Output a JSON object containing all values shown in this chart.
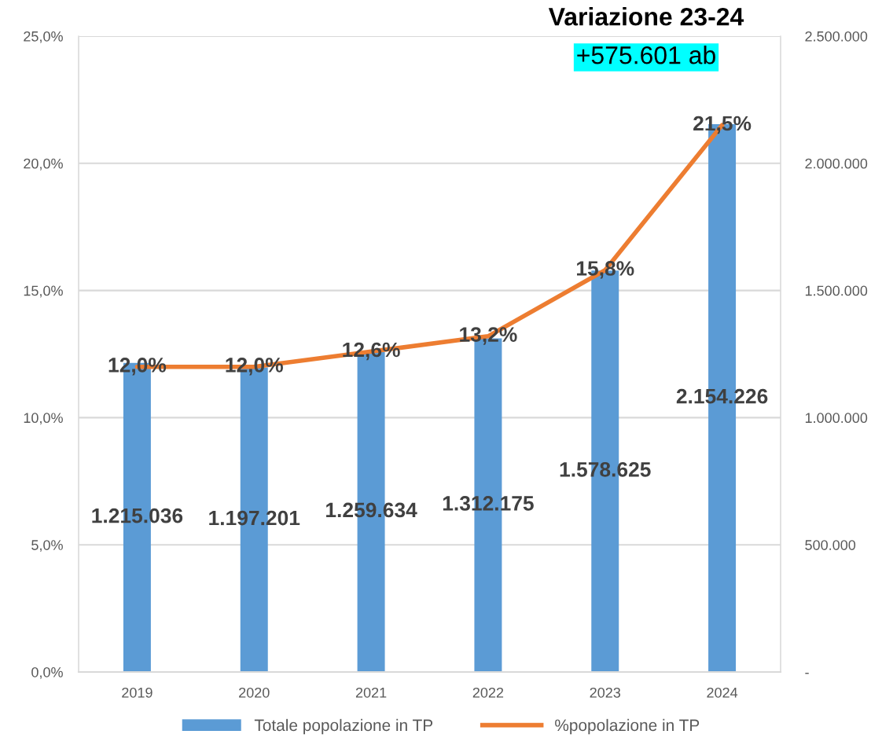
{
  "chart_data": {
    "type": "bar",
    "categories": [
      "2019",
      "2020",
      "2021",
      "2022",
      "2023",
      "2024"
    ],
    "series": [
      {
        "name": "Totale popolazione in TP",
        "axis": "y2",
        "color": "#5b9bd5",
        "values": [
          1215036,
          1197201,
          1259634,
          1312175,
          1578625,
          2154226
        ],
        "value_labels": [
          "1.215.036",
          "1.197.201",
          "1.259.634",
          "1.312.175",
          "1.578.625",
          "2.154.226"
        ]
      },
      {
        "name": "%popolazione in TP",
        "type": "line",
        "axis": "y",
        "color": "#ed7d31",
        "line_style": "solid",
        "values": [
          12.0,
          12.0,
          12.6,
          13.2,
          15.8,
          21.5
        ],
        "value_labels": [
          "12,0%",
          "12,0%",
          "12,6%",
          "13,2%",
          "15,8%",
          "21,5%"
        ]
      }
    ],
    "ylim": [
      0,
      25
    ],
    "yticks": [
      {
        "value": 0,
        "label": "0,0%"
      },
      {
        "value": 5,
        "label": "5,0%"
      },
      {
        "value": 10,
        "label": "10,0%"
      },
      {
        "value": 15,
        "label": "15,0%"
      },
      {
        "value": 20,
        "label": "20,0%"
      },
      {
        "value": 25,
        "label": "25,0%"
      }
    ],
    "y2lim": [
      0,
      2500000
    ],
    "y2ticks": [
      {
        "value": 0,
        "label": "-"
      },
      {
        "value": 500000,
        "label": "500.000"
      },
      {
        "value": 1000000,
        "label": "1.000.000"
      },
      {
        "value": 1500000,
        "label": "1.500.000"
      },
      {
        "value": 2000000,
        "label": "2.000.000"
      },
      {
        "value": 2500000,
        "label": "2.500.000"
      }
    ],
    "grid": "y",
    "legend": "bottom",
    "annotations": [
      "Variazione 23-24",
      "+575.601 ab"
    ]
  }
}
